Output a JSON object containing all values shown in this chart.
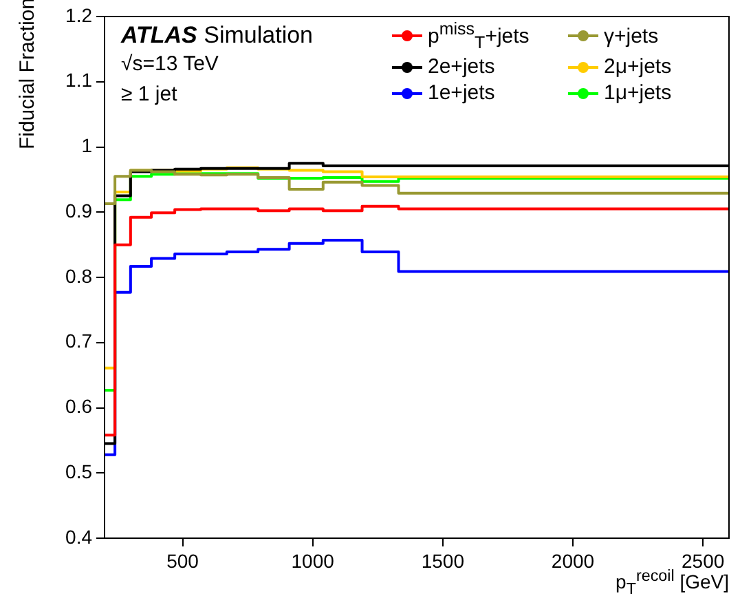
{
  "chart_data": {
    "type": "step",
    "xlabel": "p$_{T}$$^{recoil}$ [GeV]",
    "ylabel": "Fiducial Fraction",
    "annotations": [
      "ATLAS Simulation",
      "√s=13 TeV",
      "≥ 1 jet"
    ],
    "x": [
      200,
      240,
      300,
      380,
      470,
      570,
      670,
      790,
      910,
      1040,
      1190,
      1330,
      2600
    ],
    "series": [
      {
        "name": "p$^{miss}$$_{T}$+jets",
        "color": "#ff0000",
        "values": [
          0.558,
          0.85,
          0.892,
          0.899,
          0.904,
          0.905,
          0.905,
          0.902,
          0.905,
          0.902,
          0.909,
          0.905,
          0.905
        ]
      },
      {
        "name": "γ+jets",
        "color": "#999933",
        "values": [
          0.913,
          0.955,
          0.964,
          0.962,
          0.958,
          0.957,
          0.958,
          0.953,
          0.935,
          0.946,
          0.941,
          0.929,
          0.929
        ]
      },
      {
        "name": "2e+jets",
        "color": "#000000",
        "values": [
          0.545,
          0.925,
          0.962,
          0.964,
          0.966,
          0.967,
          0.967,
          0.967,
          0.975,
          0.971,
          0.971,
          0.971,
          0.971
        ]
      },
      {
        "name": "2μ+jets",
        "color": "#ffcc00",
        "values": [
          0.661,
          0.931,
          0.964,
          0.964,
          0.963,
          0.966,
          0.968,
          0.966,
          0.964,
          0.962,
          0.954,
          0.954,
          0.954
        ]
      },
      {
        "name": "1e+jets",
        "color": "#0000ff",
        "values": [
          0.528,
          0.777,
          0.817,
          0.829,
          0.836,
          0.836,
          0.839,
          0.843,
          0.852,
          0.857,
          0.839,
          0.809,
          0.809
        ]
      },
      {
        "name": "1μ+jets",
        "color": "#00ff00",
        "values": [
          0.627,
          0.919,
          0.955,
          0.958,
          0.959,
          0.959,
          0.959,
          0.952,
          0.952,
          0.953,
          0.947,
          0.952,
          0.952
        ]
      }
    ],
    "xlim": [
      200,
      2600
    ],
    "xticks": [
      500,
      1000,
      1500,
      2000,
      2500
    ],
    "ylim": [
      0.4,
      1.2
    ],
    "yticks": [
      0.4,
      0.5,
      0.6,
      0.7,
      0.8,
      0.9,
      1,
      1.1,
      1.2
    ],
    "grid": false,
    "legend": "top right",
    "marker": "none",
    "line_style": "solid"
  }
}
